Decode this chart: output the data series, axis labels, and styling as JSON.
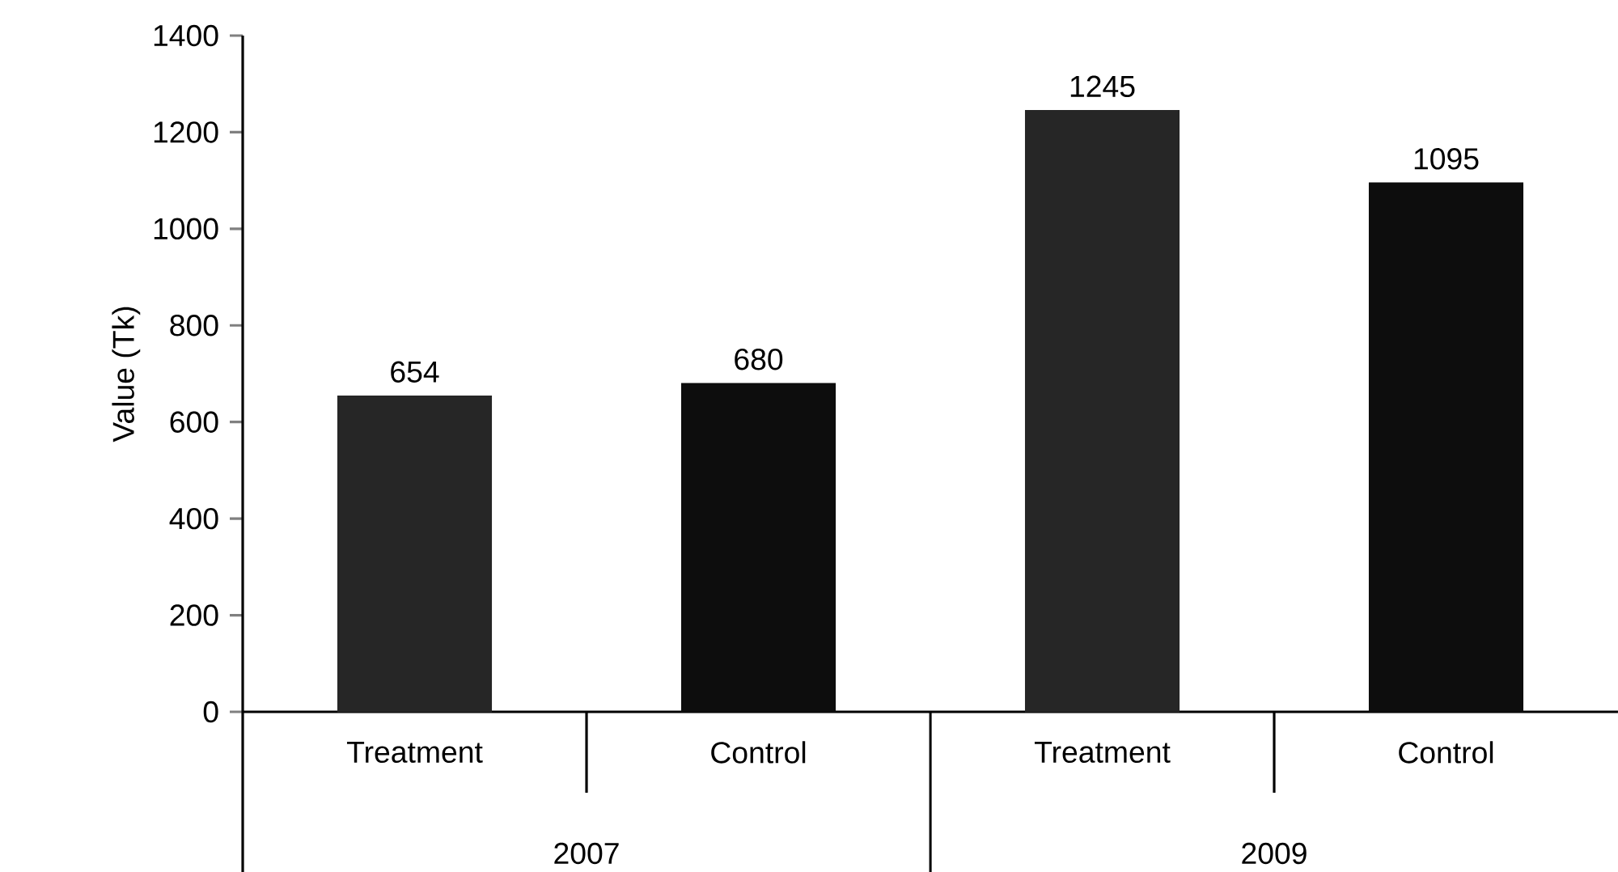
{
  "chart_data": {
    "type": "bar",
    "ylabel": "Value (Tk)",
    "categories": [
      "Treatment",
      "Control",
      "Treatment",
      "Control"
    ],
    "values": [
      654,
      680,
      1245,
      1095
    ],
    "colors": [
      "#262626",
      "#0d0d0d",
      "#262626",
      "#0d0d0d"
    ],
    "annotations": [
      "2007",
      "2009"
    ],
    "ylim": [
      0,
      1400
    ],
    "yticks": [
      0,
      200,
      400,
      600,
      800,
      1000,
      1200,
      1400
    ],
    "data_labels": true,
    "grid": false
  }
}
